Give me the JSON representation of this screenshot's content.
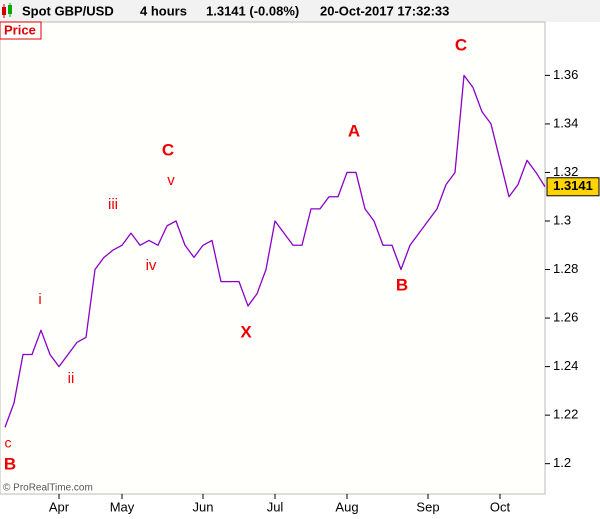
{
  "chart_data": {
    "type": "line",
    "symbol": "Spot GBP/USD",
    "timeframe": "4 hours",
    "quote": "1.3141 (-0.08%)",
    "timestamp": "20-Oct-2017 17:32:33",
    "panel_label": "Price",
    "footnote": "© ProRealTime.com",
    "last_price": 1.3141,
    "categories": [
      null,
      null,
      null,
      null,
      null,
      null,
      "Apr",
      null,
      null,
      null,
      null,
      null,
      null,
      "May",
      null,
      null,
      null,
      null,
      null,
      null,
      null,
      null,
      "Jun",
      null,
      null,
      null,
      null,
      null,
      null,
      null,
      "Jul",
      null,
      null,
      null,
      null,
      null,
      null,
      null,
      "Aug",
      null,
      null,
      null,
      null,
      null,
      null,
      null,
      null,
      "Sep",
      null,
      null,
      null,
      null,
      null,
      null,
      null,
      "Oct",
      null,
      null,
      null,
      null,
      null
    ],
    "series": [
      {
        "name": "Spot GBP/USD",
        "color": "#8b00c9",
        "values": [
          1.215,
          1.225,
          1.245,
          1.245,
          1.255,
          1.245,
          1.24,
          1.245,
          1.25,
          1.252,
          1.28,
          1.285,
          1.288,
          1.29,
          1.295,
          1.29,
          1.292,
          1.29,
          1.298,
          1.3,
          1.29,
          1.285,
          1.29,
          1.292,
          1.275,
          1.275,
          1.275,
          1.265,
          1.27,
          1.28,
          1.3,
          1.295,
          1.29,
          1.29,
          1.305,
          1.305,
          1.31,
          1.31,
          1.32,
          1.32,
          1.305,
          1.3,
          1.29,
          1.29,
          1.28,
          1.29,
          1.295,
          1.3,
          1.305,
          1.315,
          1.32,
          1.36,
          1.355,
          1.345,
          1.34,
          1.325,
          1.31,
          1.315,
          1.325,
          1.32,
          1.3141
        ]
      }
    ],
    "annotations": [
      "c",
      "B",
      "i",
      "ii",
      "iii",
      "iv",
      "C",
      "v",
      "X",
      "A",
      "B",
      "C"
    ],
    "ylim": [
      1.1875,
      1.382
    ],
    "yticks": [
      1.2,
      1.22,
      1.24,
      1.26,
      1.28,
      1.3,
      1.32,
      1.34,
      1.36
    ],
    "grid": false
  }
}
